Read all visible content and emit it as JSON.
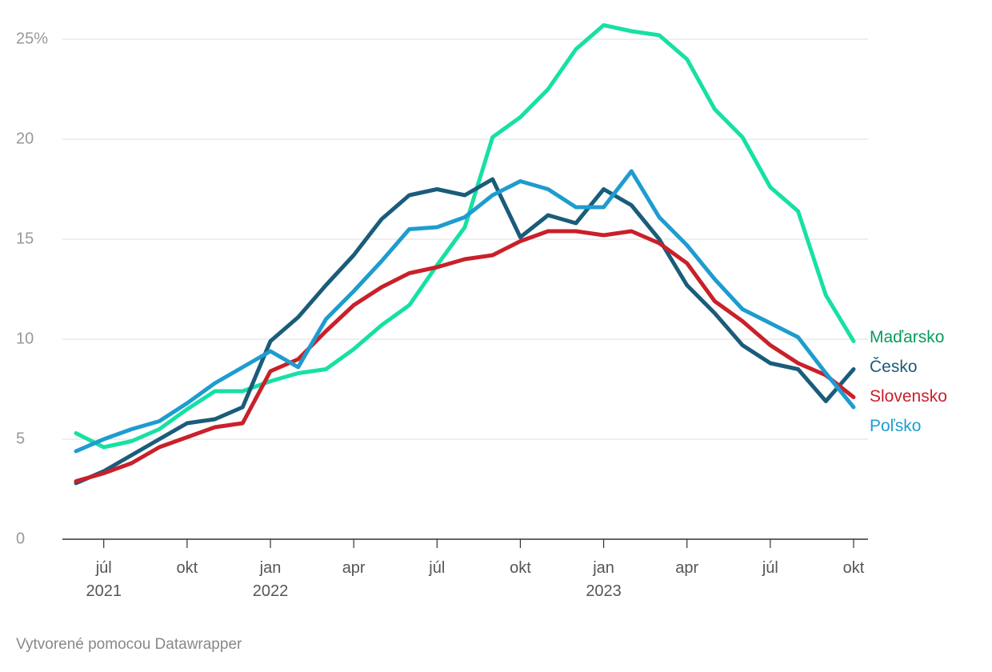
{
  "chart_data": {
    "type": "line",
    "categories": [
      null,
      "júl 2021",
      null,
      null,
      "okt",
      null,
      null,
      "jan 2022",
      null,
      null,
      "apr",
      null,
      null,
      "júl",
      null,
      null,
      "okt",
      null,
      null,
      "jan 2023",
      null,
      null,
      "apr",
      null,
      null,
      "júl",
      null,
      null,
      "okt"
    ],
    "series": [
      {
        "name": "Maďarsko",
        "color": "#17e0a4",
        "label_color": "#0a9a5e",
        "values": [
          5.3,
          4.6,
          4.9,
          5.5,
          6.5,
          7.4,
          7.4,
          7.9,
          8.3,
          8.5,
          9.5,
          10.7,
          11.7,
          13.7,
          15.6,
          20.1,
          21.1,
          22.5,
          24.5,
          25.7,
          25.4,
          25.2,
          24.0,
          21.5,
          20.1,
          17.6,
          16.4,
          12.2,
          9.9
        ]
      },
      {
        "name": "Česko",
        "color": "#1a5c7a",
        "label_color": "#1a5c7a",
        "values": [
          2.8,
          3.4,
          4.2,
          5.0,
          5.8,
          6.0,
          6.6,
          9.9,
          11.1,
          12.7,
          14.2,
          16.0,
          17.2,
          17.5,
          17.2,
          18.0,
          15.1,
          16.2,
          15.8,
          17.5,
          16.7,
          15.0,
          12.7,
          11.3,
          9.7,
          8.8,
          8.5,
          6.9,
          8.5
        ]
      },
      {
        "name": "Slovensko",
        "color": "#c9202a",
        "label_color": "#c9202a",
        "values": [
          2.9,
          3.3,
          3.8,
          4.6,
          5.1,
          5.6,
          5.8,
          8.4,
          9.0,
          10.4,
          11.7,
          12.6,
          13.3,
          13.6,
          14.0,
          14.2,
          14.9,
          15.4,
          15.4,
          15.2,
          15.4,
          14.8,
          13.8,
          11.9,
          10.9,
          9.7,
          8.8,
          8.2,
          7.1
        ]
      },
      {
        "name": "Poľsko",
        "color": "#1f9ccf",
        "label_color": "#1f9ccf",
        "values": [
          4.4,
          5.0,
          5.5,
          5.9,
          6.8,
          7.8,
          8.6,
          9.4,
          8.6,
          11.0,
          12.4,
          13.9,
          15.5,
          15.6,
          16.1,
          17.2,
          17.9,
          17.5,
          16.6,
          16.6,
          18.4,
          16.1,
          14.7,
          13.0,
          11.5,
          10.8,
          10.1,
          8.3,
          6.6
        ]
      }
    ],
    "ylim": [
      0,
      25
    ],
    "yticks": [
      0,
      5,
      10,
      15,
      20,
      {
        "value": 25,
        "label": "25%"
      }
    ],
    "grid": true,
    "footer": "Vytvorené pomocou Datawrapper"
  }
}
